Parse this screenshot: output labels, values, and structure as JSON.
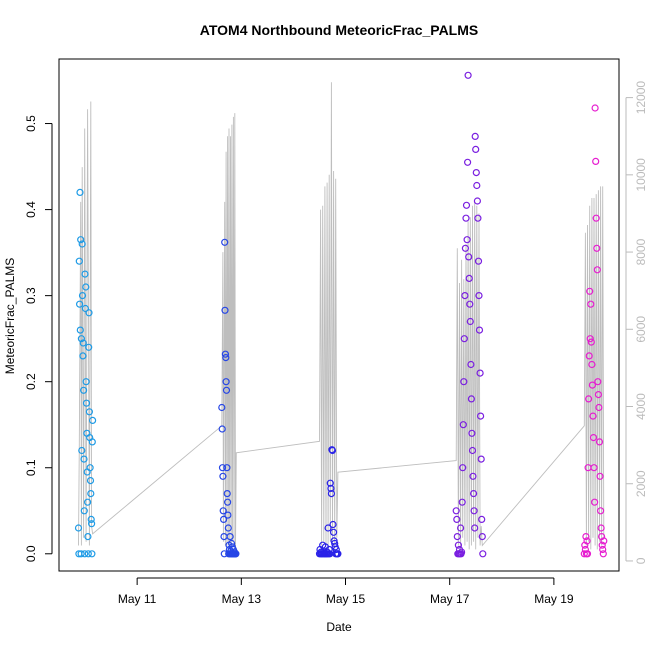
{
  "chart_data": {
    "type": "scatter",
    "title": "ATOM4 Northbound MeteoricFrac_PALMS",
    "xlabel": "Date",
    "ylabel": "MeteoricFrac_PALMS",
    "xlim": [
      "2018-05-09T12:00",
      "2018-05-20T06:00"
    ],
    "ylim": [
      -0.02,
      0.575
    ],
    "y2lim": [
      -260,
      13000
    ],
    "x_ticks": [
      {
        "value": "2018-05-11",
        "label": "May 11"
      },
      {
        "value": "2018-05-13",
        "label": "May 13"
      },
      {
        "value": "2018-05-15",
        "label": "May 15"
      },
      {
        "value": "2018-05-17",
        "label": "May 17"
      },
      {
        "value": "2018-05-19",
        "label": "May 19"
      }
    ],
    "y_ticks": [
      0.0,
      0.1,
      0.2,
      0.3,
      0.4,
      0.5
    ],
    "y_tick_labels": [
      "0.0",
      "0.1",
      "0.2",
      "0.3",
      "0.4",
      "0.5"
    ],
    "y2_ticks": [
      0,
      2000,
      4000,
      6000,
      8000,
      10000,
      12000
    ],
    "y2_tick_labels": [
      "0",
      "2000",
      "4000",
      "6000",
      "8000",
      "10000",
      "12000"
    ],
    "grid": false,
    "series": [
      {
        "color": "#1e9be6",
        "x": [
          "2018-05-09T21:00",
          "2018-05-09T21:10",
          "2018-05-09T21:20",
          "2018-05-09T21:30",
          "2018-05-09T21:40",
          "2018-05-09T21:50",
          "2018-05-09T22:00",
          "2018-05-09T22:10",
          "2018-05-09T22:20",
          "2018-05-09T22:30",
          "2018-05-09T22:40",
          "2018-05-09T22:50",
          "2018-05-09T23:00",
          "2018-05-09T23:10",
          "2018-05-09T23:20",
          "2018-05-09T23:30",
          "2018-05-09T23:40",
          "2018-05-09T23:50",
          "2018-05-10T00:00",
          "2018-05-10T00:10",
          "2018-05-10T00:20",
          "2018-05-10T00:30",
          "2018-05-10T00:40",
          "2018-05-10T00:50",
          "2018-05-10T01:00",
          "2018-05-10T01:10",
          "2018-05-10T01:20",
          "2018-05-10T01:30",
          "2018-05-10T01:40",
          "2018-05-10T01:50",
          "2018-05-10T02:00",
          "2018-05-10T02:10",
          "2018-05-10T02:20",
          "2018-05-10T02:30",
          "2018-05-10T02:40",
          "2018-05-10T02:50",
          "2018-05-10T03:00",
          "2018-05-10T03:10",
          "2018-05-10T03:20",
          "2018-05-10T03:30"
        ],
        "y": [
          0.03,
          0.0,
          0.34,
          0.29,
          0.42,
          0.26,
          0.365,
          0.0,
          0.25,
          0.12,
          0.36,
          0.3,
          0.23,
          0.245,
          0.19,
          0.11,
          0.05,
          0.0,
          0.325,
          0.285,
          0.31,
          0.2,
          0.175,
          0.14,
          0.095,
          0.06,
          0.02,
          0.0,
          0.24,
          0.28,
          0.165,
          0.135,
          0.1,
          0.085,
          0.07,
          0.04,
          0.035,
          0.0,
          0.13,
          0.155
        ]
      },
      {
        "color": "#2646e6",
        "x": [
          "2018-05-12T15:00",
          "2018-05-12T15:10",
          "2018-05-12T15:20",
          "2018-05-12T15:30",
          "2018-05-12T15:40",
          "2018-05-12T15:50",
          "2018-05-12T16:00",
          "2018-05-12T16:10",
          "2018-05-12T16:20",
          "2018-05-12T16:30",
          "2018-05-12T16:40",
          "2018-05-12T16:50",
          "2018-05-12T17:00",
          "2018-05-12T17:10",
          "2018-05-12T17:20",
          "2018-05-12T17:30",
          "2018-05-12T17:40",
          "2018-05-12T17:50",
          "2018-05-12T18:00",
          "2018-05-12T18:10",
          "2018-05-12T18:20",
          "2018-05-12T18:30",
          "2018-05-12T18:40",
          "2018-05-12T18:50",
          "2018-05-12T19:00",
          "2018-05-12T19:10",
          "2018-05-12T19:20",
          "2018-05-12T19:30",
          "2018-05-12T19:40",
          "2018-05-12T19:50",
          "2018-05-12T20:00",
          "2018-05-12T20:10",
          "2018-05-12T20:20",
          "2018-05-12T20:30",
          "2018-05-12T20:40",
          "2018-05-12T20:50",
          "2018-05-12T21:00",
          "2018-05-12T21:10",
          "2018-05-12T21:20",
          "2018-05-12T21:30"
        ],
        "y": [
          0.17,
          0.145,
          0.1,
          0.09,
          0.05,
          0.04,
          0.02,
          0.0,
          0.362,
          0.283,
          0.232,
          0.228,
          0.2,
          0.19,
          0.1,
          0.07,
          0.06,
          0.045,
          0.03,
          0.0,
          0.01,
          0.005,
          0.0,
          0.02,
          0.0,
          0.003,
          0.0,
          0.012,
          0.0,
          0.008,
          0.0,
          0.0,
          0.005,
          0.0,
          0.0,
          0.002,
          0.0,
          0.0,
          0.0,
          0.0
        ]
      },
      {
        "color": "#2a22e8",
        "x": [
          "2018-05-14T12:00",
          "2018-05-14T12:15",
          "2018-05-14T12:30",
          "2018-05-14T12:45",
          "2018-05-14T13:00",
          "2018-05-14T13:15",
          "2018-05-14T13:30",
          "2018-05-14T13:45",
          "2018-05-14T14:00",
          "2018-05-14T14:15",
          "2018-05-14T14:30",
          "2018-05-14T14:45",
          "2018-05-14T15:00",
          "2018-05-14T15:15",
          "2018-05-14T15:30",
          "2018-05-14T15:45",
          "2018-05-14T16:00",
          "2018-05-14T16:15",
          "2018-05-14T16:30",
          "2018-05-14T16:45",
          "2018-05-14T17:00",
          "2018-05-14T17:15",
          "2018-05-14T17:30",
          "2018-05-14T17:45",
          "2018-05-14T18:00",
          "2018-05-14T18:15",
          "2018-05-14T18:30",
          "2018-05-14T18:45",
          "2018-05-14T19:00",
          "2018-05-14T19:15",
          "2018-05-14T19:30",
          "2018-05-14T19:45",
          "2018-05-14T20:00",
          "2018-05-14T20:15",
          "2018-05-14T20:30"
        ],
        "y": [
          0.0,
          0.005,
          0.0,
          0.002,
          0.0,
          0.0,
          0.01,
          0.0,
          0.003,
          0.0,
          0.0,
          0.008,
          0.0,
          0.0,
          0.002,
          0.0,
          0.03,
          0.0,
          0.005,
          0.0,
          0.082,
          0.076,
          0.07,
          0.121,
          0.12,
          0.034,
          0.025,
          0.015,
          0.012,
          0.008,
          0.0,
          0.005,
          0.0,
          0.0,
          0.0
        ]
      },
      {
        "color": "#7a1fe0",
        "x": [
          "2018-05-17T03:00",
          "2018-05-17T03:15",
          "2018-05-17T03:30",
          "2018-05-17T03:45",
          "2018-05-17T04:00",
          "2018-05-17T04:15",
          "2018-05-17T04:30",
          "2018-05-17T04:45",
          "2018-05-17T05:00",
          "2018-05-17T05:15",
          "2018-05-17T05:30",
          "2018-05-17T05:45",
          "2018-05-17T06:00",
          "2018-05-17T06:15",
          "2018-05-17T06:30",
          "2018-05-17T06:45",
          "2018-05-17T07:00",
          "2018-05-17T07:15",
          "2018-05-17T07:30",
          "2018-05-17T07:45",
          "2018-05-17T08:00",
          "2018-05-17T08:15",
          "2018-05-17T08:30",
          "2018-05-17T08:45",
          "2018-05-17T09:00",
          "2018-05-17T09:15",
          "2018-05-17T09:30",
          "2018-05-17T09:45",
          "2018-05-17T10:00",
          "2018-05-17T10:15",
          "2018-05-17T10:30",
          "2018-05-17T10:45",
          "2018-05-17T11:00",
          "2018-05-17T11:15",
          "2018-05-17T11:30",
          "2018-05-17T11:45",
          "2018-05-17T12:00",
          "2018-05-17T12:15",
          "2018-05-17T12:30",
          "2018-05-17T12:45",
          "2018-05-17T13:00",
          "2018-05-17T13:15",
          "2018-05-17T13:30",
          "2018-05-17T13:45",
          "2018-05-17T14:00",
          "2018-05-17T14:15",
          "2018-05-17T14:30",
          "2018-05-17T14:45",
          "2018-05-17T15:00",
          "2018-05-17T15:15"
        ],
        "y": [
          0.05,
          0.04,
          0.02,
          0.0,
          0.01,
          0.0,
          0.005,
          0.0,
          0.03,
          0.0,
          0.002,
          0.06,
          0.1,
          0.15,
          0.2,
          0.25,
          0.3,
          0.355,
          0.39,
          0.405,
          0.365,
          0.455,
          0.556,
          0.345,
          0.32,
          0.29,
          0.27,
          0.22,
          0.18,
          0.14,
          0.12,
          0.09,
          0.07,
          0.05,
          0.03,
          0.485,
          0.47,
          0.443,
          0.428,
          0.41,
          0.39,
          0.34,
          0.3,
          0.26,
          0.21,
          0.16,
          0.11,
          0.04,
          0.02,
          0.0
        ]
      },
      {
        "color": "#e61ed0",
        "x": [
          "2018-05-19T14:00",
          "2018-05-19T14:15",
          "2018-05-19T14:30",
          "2018-05-19T14:45",
          "2018-05-19T15:00",
          "2018-05-19T15:15",
          "2018-05-19T15:30",
          "2018-05-19T15:45",
          "2018-05-19T16:00",
          "2018-05-19T16:15",
          "2018-05-19T16:30",
          "2018-05-19T16:45",
          "2018-05-19T17:00",
          "2018-05-19T17:15",
          "2018-05-19T17:30",
          "2018-05-19T17:45",
          "2018-05-19T18:00",
          "2018-05-19T18:15",
          "2018-05-19T18:30",
          "2018-05-19T18:45",
          "2018-05-19T19:00",
          "2018-05-19T19:15",
          "2018-05-19T19:30",
          "2018-05-19T19:45",
          "2018-05-19T20:00",
          "2018-05-19T20:15",
          "2018-05-19T20:30",
          "2018-05-19T20:45",
          "2018-05-19T21:00",
          "2018-05-19T21:15",
          "2018-05-19T21:30",
          "2018-05-19T21:45",
          "2018-05-19T22:00",
          "2018-05-19T22:15",
          "2018-05-19T22:30",
          "2018-05-19T22:45",
          "2018-05-19T23:00"
        ],
        "y": [
          0.0,
          0.01,
          0.005,
          0.02,
          0.0,
          0.015,
          0.0,
          0.1,
          0.18,
          0.23,
          0.305,
          0.25,
          0.29,
          0.246,
          0.22,
          0.196,
          0.16,
          0.135,
          0.1,
          0.06,
          0.518,
          0.456,
          0.39,
          0.355,
          0.33,
          0.2,
          0.185,
          0.17,
          0.13,
          0.09,
          0.05,
          0.03,
          0.02,
          0.01,
          0.005,
          0.0,
          0.015
        ]
      }
    ],
    "line_series": {
      "axis": "right",
      "color": "#bebebe",
      "x": [
        "2018-05-09T21:00",
        "2018-05-09T21:20",
        "2018-05-09T22:00",
        "2018-05-09T22:20",
        "2018-05-09T22:40",
        "2018-05-09T23:20",
        "2018-05-09T23:50",
        "2018-05-10T00:30",
        "2018-05-10T01:10",
        "2018-05-10T02:00",
        "2018-05-10T02:40",
        "2018-05-10T03:00",
        "2018-05-10T03:30",
        "2018-05-12T15:00",
        "2018-05-12T15:30",
        "2018-05-12T15:45",
        "2018-05-12T16:20",
        "2018-05-12T16:40",
        "2018-05-12T17:00",
        "2018-05-12T17:20",
        "2018-05-12T17:40",
        "2018-05-12T18:00",
        "2018-05-12T18:20",
        "2018-05-12T18:40",
        "2018-05-12T19:00",
        "2018-05-12T19:20",
        "2018-05-12T19:40",
        "2018-05-12T20:00",
        "2018-05-12T20:20",
        "2018-05-12T20:40",
        "2018-05-12T21:00",
        "2018-05-12T21:20",
        "2018-05-12T21:40",
        "2018-05-14T12:00",
        "2018-05-14T12:30",
        "2018-05-14T13:00",
        "2018-05-14T13:30",
        "2018-05-14T14:00",
        "2018-05-14T14:30",
        "2018-05-14T15:00",
        "2018-05-14T15:30",
        "2018-05-14T16:00",
        "2018-05-14T16:30",
        "2018-05-14T17:00",
        "2018-05-14T17:30",
        "2018-05-14T18:00",
        "2018-05-14T18:30",
        "2018-05-14T19:00",
        "2018-05-14T19:30",
        "2018-05-14T20:00",
        "2018-05-14T20:30",
        "2018-05-17T03:00",
        "2018-05-17T03:30",
        "2018-05-17T04:00",
        "2018-05-17T04:30",
        "2018-05-17T05:00",
        "2018-05-17T05:30",
        "2018-05-17T06:00",
        "2018-05-17T06:30",
        "2018-05-17T07:00",
        "2018-05-17T07:30",
        "2018-05-17T08:00",
        "2018-05-17T08:30",
        "2018-05-17T09:00",
        "2018-05-17T09:30",
        "2018-05-17T10:00",
        "2018-05-17T10:30",
        "2018-05-17T11:00",
        "2018-05-17T11:30",
        "2018-05-17T12:00",
        "2018-05-17T12:30",
        "2018-05-17T13:00",
        "2018-05-17T13:30",
        "2018-05-17T14:00",
        "2018-05-17T14:30",
        "2018-05-17T15:00",
        "2018-05-19T14:00",
        "2018-05-19T14:30",
        "2018-05-19T15:00",
        "2018-05-19T15:30",
        "2018-05-19T16:00",
        "2018-05-19T16:30",
        "2018-05-19T17:00",
        "2018-05-19T17:30",
        "2018-05-19T18:00",
        "2018-05-19T18:30",
        "2018-05-19T19:00",
        "2018-05-19T19:30",
        "2018-05-19T20:00",
        "2018-05-19T20:30",
        "2018-05-19T21:00",
        "2018-05-19T21:30",
        "2018-05-19T22:00",
        "2018-05-19T22:30",
        "2018-05-19T23:00"
      ],
      "y": [
        400,
        3000,
        9300,
        400,
        10200,
        600,
        11200,
        500,
        11700,
        400,
        11900,
        900,
        700,
        3500,
        8000,
        500,
        9300,
        400,
        10600,
        400,
        11000,
        500,
        11200,
        300,
        11000,
        400,
        11300,
        500,
        11500,
        400,
        11600,
        300,
        2800,
        3100,
        9100,
        400,
        9200,
        500,
        9700,
        400,
        9800,
        400,
        10000,
        500,
        12400,
        500,
        10100,
        300,
        9900,
        600,
        2300,
        2600,
        8100,
        400,
        7200,
        300,
        7800,
        600,
        7300,
        400,
        8200,
        500,
        8800,
        300,
        8900,
        400,
        9200,
        500,
        9300,
        300,
        9200,
        600,
        9000,
        400,
        900,
        400,
        3500,
        8500,
        400,
        8700,
        500,
        9200,
        300,
        9400,
        600,
        9400,
        400,
        9500,
        300,
        9600,
        500,
        9700,
        400,
        9700,
        600
      ]
    }
  }
}
